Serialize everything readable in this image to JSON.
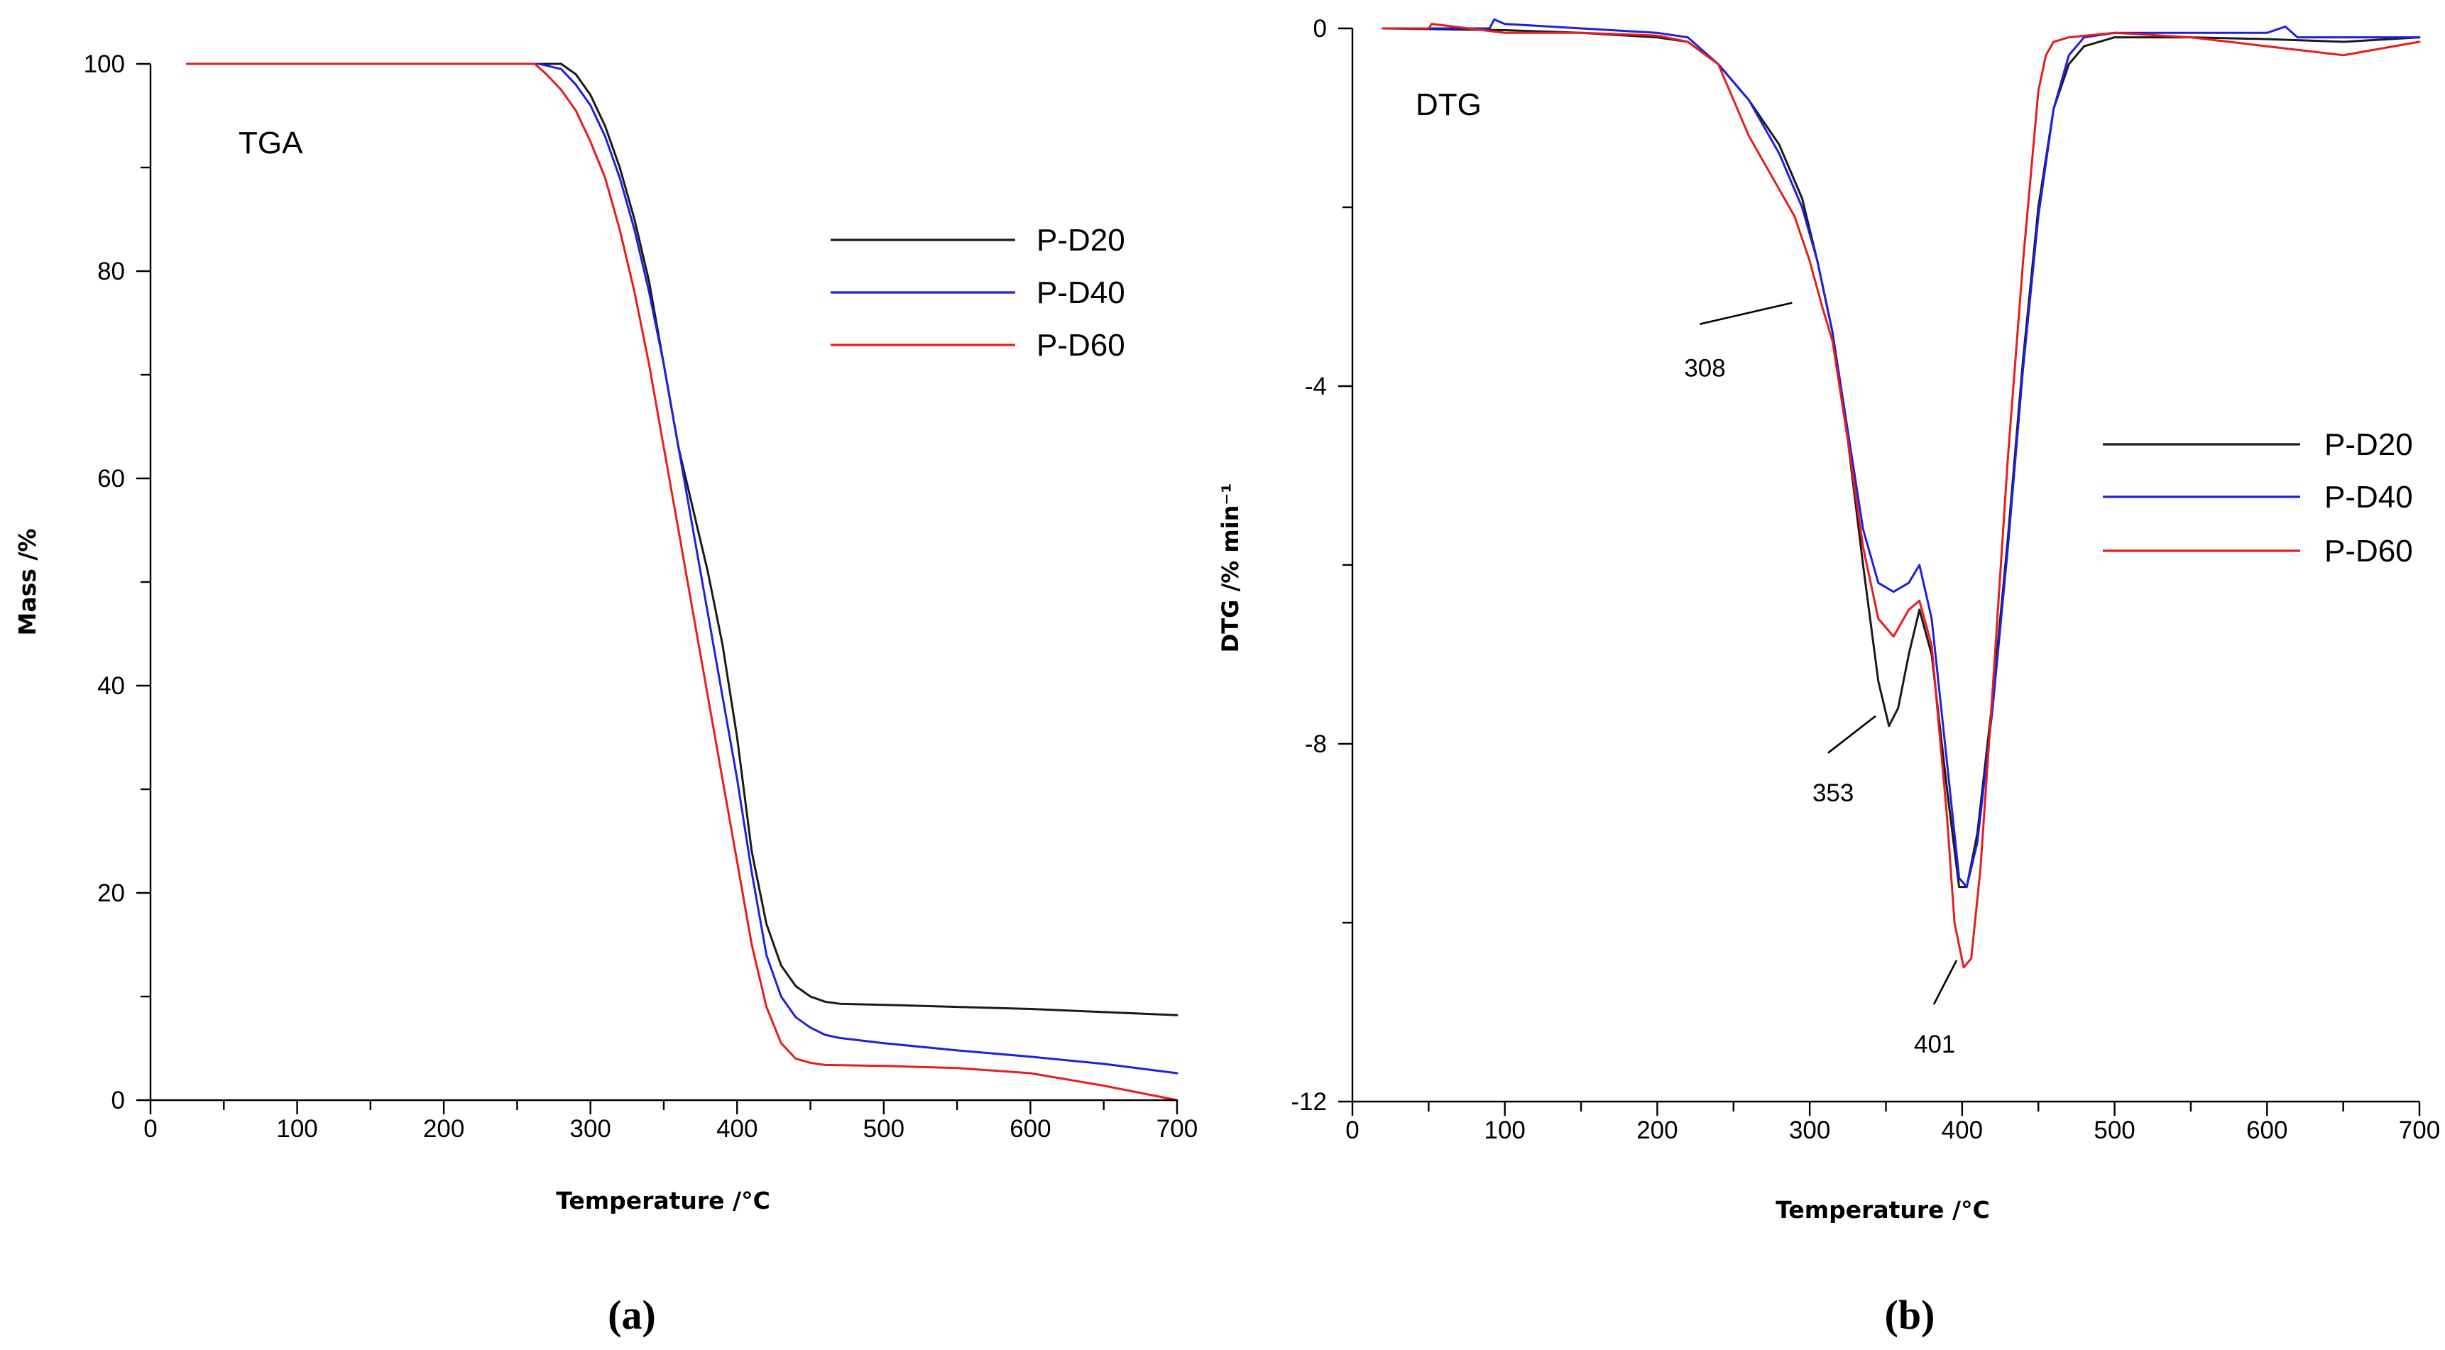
{
  "colors": {
    "P-D20": "#1a1a1a",
    "P-D40": "#1f1fe0",
    "P-D60": "#e81c1c"
  },
  "chart_data": [
    {
      "type": "line",
      "panel_label": "TGA",
      "subfigure_label": "(a)",
      "xlabel": "Temperature /°C",
      "ylabel": "Mass /%",
      "xlim": [
        0,
        700
      ],
      "ylim": [
        0,
        100
      ],
      "xticks": [
        0,
        100,
        200,
        300,
        400,
        500,
        600,
        700
      ],
      "yticks": [
        0,
        20,
        40,
        60,
        80,
        100
      ],
      "legend_position": "upper-right",
      "series": [
        {
          "name": "P-D20",
          "x": [
            25,
            250,
            280,
            290,
            300,
            310,
            320,
            330,
            340,
            350,
            360,
            370,
            380,
            390,
            400,
            410,
            420,
            430,
            440,
            450,
            460,
            470,
            500,
            550,
            600,
            650,
            700
          ],
          "y": [
            100,
            100,
            100,
            99,
            97,
            94,
            90,
            85,
            79,
            71,
            63,
            57,
            51,
            44,
            35,
            24,
            17,
            13,
            11,
            10,
            9.5,
            9.3,
            9.2,
            9.0,
            8.8,
            8.5,
            8.2
          ]
        },
        {
          "name": "P-D40",
          "x": [
            25,
            250,
            265,
            280,
            290,
            300,
            310,
            320,
            330,
            340,
            350,
            360,
            370,
            380,
            390,
            400,
            410,
            420,
            430,
            440,
            450,
            460,
            470,
            500,
            550,
            600,
            650,
            700
          ],
          "y": [
            100,
            100,
            100,
            99.5,
            98,
            96,
            93,
            89,
            84,
            78,
            71,
            63,
            55,
            47,
            39,
            31,
            22,
            14,
            10,
            8,
            7,
            6.3,
            6,
            5.5,
            4.8,
            4.2,
            3.5,
            2.6
          ]
        },
        {
          "name": "P-D60",
          "x": [
            25,
            250,
            262,
            270,
            280,
            290,
            300,
            310,
            320,
            330,
            340,
            350,
            360,
            370,
            380,
            390,
            400,
            410,
            420,
            430,
            440,
            450,
            460,
            500,
            550,
            600,
            650,
            700
          ],
          "y": [
            100,
            100,
            100,
            99,
            97.5,
            95.5,
            92.5,
            89,
            84,
            78,
            71,
            63,
            55,
            47,
            39,
            31,
            23,
            15,
            9,
            5.5,
            4,
            3.6,
            3.4,
            3.3,
            3.1,
            2.6,
            1.4,
            0
          ]
        }
      ]
    },
    {
      "type": "line",
      "panel_label": "DTG",
      "subfigure_label": "(b)",
      "xlabel": "Temperature /°C",
      "ylabel": "DTG /% min⁻¹",
      "xlim": [
        0,
        700
      ],
      "ylim": [
        -12,
        0
      ],
      "xticks": [
        0,
        100,
        200,
        300,
        400,
        500,
        600,
        700
      ],
      "yticks": [
        0,
        -4,
        -8,
        -12
      ],
      "legend_position": "right",
      "annotations": [
        {
          "text": "308",
          "x": 308,
          "y": -3.1
        },
        {
          "text": "353",
          "x": 353,
          "y": -7.8
        },
        {
          "text": "401",
          "x": 401,
          "y": -10.5
        }
      ],
      "series": [
        {
          "name": "P-D20",
          "x": [
            20,
            100,
            150,
            200,
            220,
            240,
            260,
            280,
            295,
            305,
            315,
            325,
            335,
            345,
            352,
            358,
            365,
            372,
            380,
            390,
            398,
            403,
            410,
            420,
            430,
            440,
            450,
            460,
            470,
            480,
            500,
            550,
            600,
            650,
            700
          ],
          "y": [
            0,
            -0.02,
            -0.05,
            -0.1,
            -0.15,
            -0.4,
            -0.8,
            -1.3,
            -1.9,
            -2.6,
            -3.4,
            -4.6,
            -6.0,
            -7.3,
            -7.8,
            -7.6,
            -7.0,
            -6.5,
            -7.0,
            -8.5,
            -9.6,
            -9.6,
            -9.0,
            -7.5,
            -5.7,
            -3.7,
            -2.0,
            -0.9,
            -0.4,
            -0.2,
            -0.1,
            -0.1,
            -0.12,
            -0.15,
            -0.1
          ]
        },
        {
          "name": "P-D40",
          "x": [
            20,
            90,
            93,
            100,
            150,
            200,
            220,
            240,
            260,
            280,
            295,
            305,
            315,
            325,
            335,
            345,
            355,
            365,
            372,
            380,
            390,
            398,
            403,
            410,
            420,
            430,
            440,
            450,
            460,
            470,
            480,
            500,
            550,
            600,
            612,
            620,
            650,
            700
          ],
          "y": [
            0,
            0,
            0.1,
            0.05,
            0,
            -0.05,
            -0.1,
            -0.4,
            -0.8,
            -1.4,
            -2.0,
            -2.6,
            -3.4,
            -4.5,
            -5.6,
            -6.2,
            -6.3,
            -6.2,
            -6.0,
            -6.6,
            -8.2,
            -9.5,
            -9.6,
            -9.1,
            -7.6,
            -5.8,
            -3.8,
            -2.1,
            -0.9,
            -0.3,
            -0.1,
            -0.05,
            -0.05,
            -0.05,
            0.02,
            -0.1,
            -0.1,
            -0.1
          ]
        },
        {
          "name": "P-D60",
          "x": [
            20,
            50,
            52,
            100,
            150,
            200,
            220,
            240,
            250,
            260,
            270,
            280,
            290,
            300,
            308,
            315,
            325,
            335,
            345,
            355,
            365,
            372,
            380,
            390,
            395,
            401,
            406,
            412,
            420,
            430,
            440,
            450,
            455,
            460,
            470,
            500,
            550,
            600,
            650,
            700
          ],
          "y": [
            0,
            0,
            0.05,
            -0.05,
            -0.05,
            -0.08,
            -0.15,
            -0.4,
            -0.8,
            -1.2,
            -1.5,
            -1.8,
            -2.1,
            -2.6,
            -3.1,
            -3.5,
            -4.6,
            -5.8,
            -6.6,
            -6.8,
            -6.5,
            -6.4,
            -6.9,
            -8.8,
            -10.0,
            -10.5,
            -10.4,
            -9.4,
            -7.4,
            -4.8,
            -2.6,
            -0.7,
            -0.3,
            -0.15,
            -0.1,
            -0.05,
            -0.1,
            -0.2,
            -0.3,
            -0.15
          ]
        }
      ]
    }
  ]
}
